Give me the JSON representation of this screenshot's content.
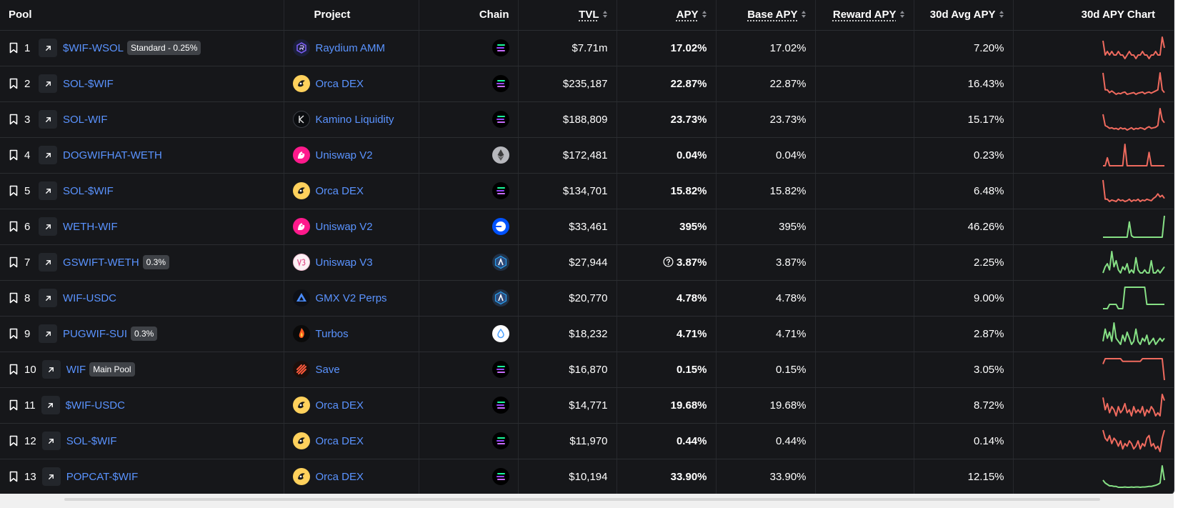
{
  "headers": {
    "pool": "Pool",
    "project": "Project",
    "chain": "Chain",
    "tvl": "TVL",
    "apy": "APY",
    "base_apy": "Base APY",
    "reward_apy": "Reward APY",
    "avg_apy_30d": "30d Avg APY",
    "apy_chart_30d": "30d APY Chart"
  },
  "colors": {
    "accent_link": "#5a93ff",
    "chart_up": "#86e085",
    "chart_down": "#ef6a5e"
  },
  "rows": [
    {
      "rank": "1",
      "pool": "$WIF-WSOL",
      "badge": "Standard - 0.25%",
      "project": "Raydium AMM",
      "project_icon": "raydium-icon",
      "chain": "Solana",
      "chain_icon": "solana-icon",
      "tvl": "$7.71m",
      "apy": "17.02%",
      "apy_info": false,
      "base_apy": "17.02%",
      "reward_apy": "",
      "avg30": "7.20%",
      "trend": "down",
      "spark": [
        8,
        4,
        5,
        4,
        5,
        4,
        4,
        5,
        4,
        4,
        3,
        4,
        5,
        4,
        4,
        3,
        4,
        4,
        5,
        4,
        4,
        3,
        4,
        4,
        5,
        4,
        4,
        9,
        6
      ]
    },
    {
      "rank": "2",
      "pool": "SOL-$WIF",
      "badge": "",
      "project": "Orca DEX",
      "project_icon": "orca-icon",
      "chain": "Solana",
      "chain_icon": "solana-icon",
      "tvl": "$235,187",
      "apy": "22.87%",
      "apy_info": false,
      "base_apy": "22.87%",
      "reward_apy": "",
      "avg30": "16.43%",
      "trend": "down",
      "spark": [
        5,
        2,
        2,
        1.5,
        1.8,
        1.5,
        1.2,
        1.4,
        1.3,
        1.5,
        1.6,
        1.2,
        1.3,
        1.4,
        1.5,
        1.2,
        1.4,
        1.5,
        1.6,
        1.3,
        1.5,
        1.6,
        1.4,
        1.6,
        1.8,
        2,
        5,
        2,
        1.5
      ]
    },
    {
      "rank": "3",
      "pool": "SOL-WIF",
      "badge": "",
      "project": "Kamino Liquidity",
      "project_icon": "kamino-icon",
      "chain": "Solana",
      "chain_icon": "solana-icon",
      "tvl": "$188,809",
      "apy": "23.73%",
      "apy_info": false,
      "base_apy": "23.73%",
      "reward_apy": "",
      "avg30": "15.17%",
      "trend": "down",
      "spark": [
        4,
        2,
        1.8,
        1.5,
        1.6,
        1.4,
        1.5,
        1.3,
        1.6,
        1.4,
        1.5,
        1.2,
        1.4,
        1.6,
        1.3,
        1.5,
        1.4,
        1.6,
        1.5,
        1.3,
        1.6,
        1.8,
        1.5,
        1.6,
        1.7,
        2,
        5,
        3,
        2.5
      ]
    },
    {
      "rank": "4",
      "pool": "DOGWIFHAT-WETH",
      "badge": "",
      "project": "Uniswap V2",
      "project_icon": "uniswap-icon",
      "chain": "Ethereum",
      "chain_icon": "ethereum-icon",
      "tvl": "$172,481",
      "apy": "0.04%",
      "apy_info": false,
      "base_apy": "0.04%",
      "reward_apy": "",
      "avg30": "0.23%",
      "trend": "down",
      "spark": [
        0,
        0,
        3,
        0,
        0,
        0,
        0,
        0,
        0,
        0,
        8,
        0,
        0,
        0,
        0,
        0,
        0,
        0,
        0,
        0,
        0,
        5,
        0,
        0,
        0,
        0,
        0,
        0,
        0
      ]
    },
    {
      "rank": "5",
      "pool": "SOL-$WIF",
      "badge": "",
      "project": "Orca DEX",
      "project_icon": "orca-icon",
      "chain": "Solana",
      "chain_icon": "solana-icon",
      "tvl": "$134,701",
      "apy": "15.82%",
      "apy_info": false,
      "base_apy": "15.82%",
      "reward_apy": "",
      "avg30": "6.48%",
      "trend": "down",
      "spark": [
        4,
        1.5,
        1.5,
        1.2,
        1.4,
        1.3,
        1.2,
        1.5,
        1.3,
        1.4,
        1.2,
        1.3,
        1.5,
        1.2,
        1.4,
        1.3,
        1.5,
        1.2,
        1.4,
        1.3,
        1.5,
        1.4,
        1.3,
        1.6,
        1.8,
        2.2,
        1.8,
        2,
        1.6
      ]
    },
    {
      "rank": "6",
      "pool": "WETH-WIF",
      "badge": "",
      "project": "Uniswap V2",
      "project_icon": "uniswap-icon",
      "chain": "Base",
      "chain_icon": "base-icon",
      "tvl": "$33,461",
      "apy": "395%",
      "apy_info": false,
      "base_apy": "395%",
      "reward_apy": "",
      "avg30": "46.26%",
      "trend": "up",
      "spark": [
        0,
        0,
        0,
        0,
        0,
        0,
        0,
        0,
        0,
        0,
        0,
        0,
        20,
        2,
        0,
        0,
        0,
        0,
        0,
        0,
        0,
        0,
        0,
        0,
        0,
        0,
        0,
        0,
        28
      ]
    },
    {
      "rank": "7",
      "pool": "GSWIFT-WETH",
      "badge": "0.3%",
      "project": "Uniswap V3",
      "project_icon": "uniswap-v3-icon",
      "chain": "Arbitrum",
      "chain_icon": "arbitrum-icon",
      "tvl": "$27,944",
      "apy": "3.87%",
      "apy_info": true,
      "base_apy": "3.87%",
      "reward_apy": "",
      "avg30": "2.25%",
      "trend": "up",
      "spark": [
        1,
        3,
        4,
        2,
        8,
        3,
        5,
        2,
        1,
        3,
        2,
        4,
        1,
        2,
        1,
        6,
        2,
        1,
        1,
        2,
        1,
        1,
        5,
        1,
        1,
        2,
        1,
        2,
        3
      ]
    },
    {
      "rank": "8",
      "pool": "WIF-USDC",
      "badge": "",
      "project": "GMX V2 Perps",
      "project_icon": "gmx-icon",
      "chain": "Arbitrum",
      "chain_icon": "arbitrum-icon",
      "tvl": "$20,770",
      "apy": "4.78%",
      "apy_info": false,
      "base_apy": "4.78%",
      "reward_apy": "",
      "avg30": "9.00%",
      "trend": "up",
      "spark": [
        1,
        1,
        1,
        2,
        2,
        2,
        2,
        1,
        1,
        1,
        6,
        6,
        6,
        6,
        6,
        6,
        6,
        6,
        6,
        6,
        2,
        2,
        2,
        2,
        2,
        2,
        2,
        2,
        2
      ]
    },
    {
      "rank": "9",
      "pool": "PUGWIF-SUI",
      "badge": "0.3%",
      "project": "Turbos",
      "project_icon": "turbos-icon",
      "chain": "Sui",
      "chain_icon": "sui-icon",
      "tvl": "$18,232",
      "apy": "4.71%",
      "apy_info": false,
      "base_apy": "4.71%",
      "reward_apy": "",
      "avg30": "2.87%",
      "trend": "up",
      "spark": [
        2,
        6,
        3,
        5,
        2,
        8,
        3,
        2,
        1,
        4,
        2,
        5,
        3,
        1,
        2,
        6,
        2,
        1,
        3,
        2,
        4,
        1,
        2,
        3,
        1,
        2,
        3,
        2,
        3
      ]
    },
    {
      "rank": "10",
      "pool": "WIF",
      "badge": "Main Pool",
      "project": "Save",
      "project_icon": "save-icon",
      "chain": "Solana",
      "chain_icon": "solana-icon",
      "tvl": "$16,870",
      "apy": "0.15%",
      "apy_info": false,
      "base_apy": "0.15%",
      "reward_apy": "",
      "avg30": "3.05%",
      "trend": "down",
      "spark": [
        6,
        8,
        8,
        8,
        8,
        8,
        8,
        8,
        8,
        7,
        7,
        7,
        7,
        7,
        7,
        7,
        7,
        7,
        8,
        8,
        8,
        8,
        8,
        8,
        8,
        8,
        8,
        8,
        0
      ]
    },
    {
      "rank": "11",
      "pool": "$WIF-USDC",
      "badge": "",
      "project": "Orca DEX",
      "project_icon": "orca-icon",
      "chain": "Solana",
      "chain_icon": "solana-icon",
      "tvl": "$14,771",
      "apy": "19.68%",
      "apy_info": false,
      "base_apy": "19.68%",
      "reward_apy": "",
      "avg30": "8.72%",
      "trend": "down",
      "spark": [
        8,
        4,
        6,
        3,
        5,
        4,
        2,
        5,
        3,
        4,
        6,
        3,
        4,
        2,
        5,
        3,
        4,
        3,
        5,
        2,
        4,
        3,
        5,
        4,
        2,
        3,
        2,
        9,
        7
      ]
    },
    {
      "rank": "12",
      "pool": "SOL-$WIF",
      "badge": "",
      "project": "Orca DEX",
      "project_icon": "orca-icon",
      "chain": "Solana",
      "chain_icon": "solana-icon",
      "tvl": "$11,970",
      "apy": "0.44%",
      "apy_info": false,
      "base_apy": "0.44%",
      "reward_apy": "",
      "avg30": "0.14%",
      "trend": "down",
      "spark": [
        9,
        6,
        5,
        7,
        4,
        6,
        5,
        3,
        5,
        2,
        4,
        3,
        5,
        4,
        2,
        3,
        5,
        2,
        4,
        3,
        6,
        7,
        3,
        4,
        2,
        3,
        1,
        6,
        9
      ]
    },
    {
      "rank": "13",
      "pool": "POPCAT-$WIF",
      "badge": "",
      "project": "Orca DEX",
      "project_icon": "orca-icon",
      "chain": "Solana",
      "chain_icon": "solana-icon",
      "tvl": "$10,194",
      "apy": "33.90%",
      "apy_info": false,
      "base_apy": "33.90%",
      "reward_apy": "",
      "avg30": "12.15%",
      "trend": "up",
      "spark": [
        3,
        2,
        1.5,
        1,
        1,
        0.8,
        0.8,
        0.5,
        0.5,
        0.5,
        0.6,
        0.5,
        0.5,
        0.6,
        0.5,
        0.6,
        0.6,
        0.5,
        0.6,
        0.6,
        0.7,
        0.8,
        0.8,
        1,
        1.2,
        1.5,
        2,
        8,
        3
      ]
    }
  ]
}
